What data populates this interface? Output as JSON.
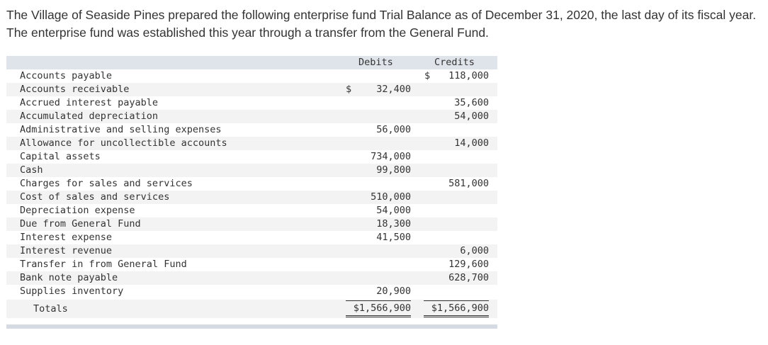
{
  "intro": "The Village of Seaside Pines prepared the following enterprise fund Trial Balance as of December 31, 2020, the last day of its fiscal year. The enterprise fund was established this year through a transfer from the General Fund.",
  "table": {
    "headers": {
      "debits": "Debits",
      "credits": "Credits"
    },
    "rows": [
      {
        "account": "Accounts payable",
        "debit_sign": "",
        "debit": "",
        "credit_sign": "$",
        "credit": "118,000"
      },
      {
        "account": "Accounts receivable",
        "debit_sign": "$",
        "debit": "32,400",
        "credit_sign": "",
        "credit": ""
      },
      {
        "account": "Accrued interest payable",
        "debit_sign": "",
        "debit": "",
        "credit_sign": "",
        "credit": "35,600"
      },
      {
        "account": "Accumulated depreciation",
        "debit_sign": "",
        "debit": "",
        "credit_sign": "",
        "credit": "54,000"
      },
      {
        "account": "Administrative and selling expenses",
        "debit_sign": "",
        "debit": "56,000",
        "credit_sign": "",
        "credit": ""
      },
      {
        "account": "Allowance for uncollectible accounts",
        "debit_sign": "",
        "debit": "",
        "credit_sign": "",
        "credit": "14,000"
      },
      {
        "account": "Capital assets",
        "debit_sign": "",
        "debit": "734,000",
        "credit_sign": "",
        "credit": ""
      },
      {
        "account": "Cash",
        "debit_sign": "",
        "debit": "99,800",
        "credit_sign": "",
        "credit": ""
      },
      {
        "account": "Charges for sales and services",
        "debit_sign": "",
        "debit": "",
        "credit_sign": "",
        "credit": "581,000"
      },
      {
        "account": "Cost of sales and services",
        "debit_sign": "",
        "debit": "510,000",
        "credit_sign": "",
        "credit": ""
      },
      {
        "account": "Depreciation expense",
        "debit_sign": "",
        "debit": "54,000",
        "credit_sign": "",
        "credit": ""
      },
      {
        "account": "Due from General Fund",
        "debit_sign": "",
        "debit": "18,300",
        "credit_sign": "",
        "credit": ""
      },
      {
        "account": "Interest expense",
        "debit_sign": "",
        "debit": "41,500",
        "credit_sign": "",
        "credit": ""
      },
      {
        "account": "Interest revenue",
        "debit_sign": "",
        "debit": "",
        "credit_sign": "",
        "credit": "6,000"
      },
      {
        "account": "Transfer in from General Fund",
        "debit_sign": "",
        "debit": "",
        "credit_sign": "",
        "credit": "129,600"
      },
      {
        "account": "Bank note payable",
        "debit_sign": "",
        "debit": "",
        "credit_sign": "",
        "credit": "628,700"
      },
      {
        "account": "Supplies inventory",
        "debit_sign": "",
        "debit": "20,900",
        "credit_sign": "",
        "credit": ""
      }
    ],
    "totals": {
      "label": "Totals",
      "debit": "$1,566,900",
      "credit": "$1,566,900"
    }
  }
}
